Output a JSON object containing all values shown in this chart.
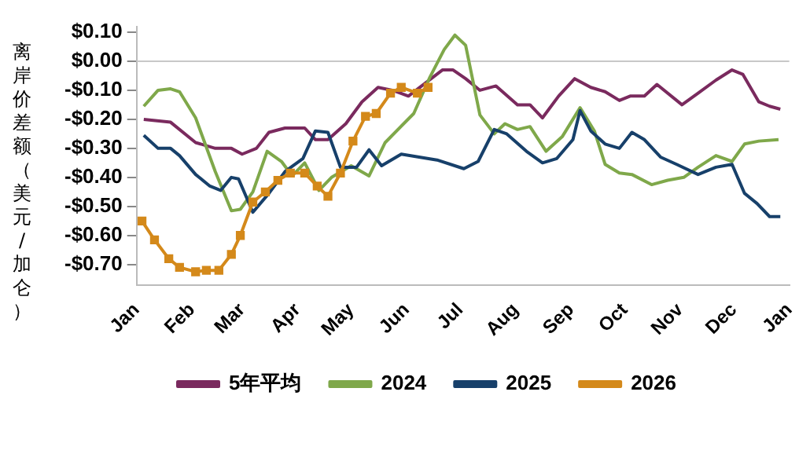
{
  "chart_data": {
    "type": "line",
    "ylabel": "离岸价差额（美元/加仑）",
    "xlim": [
      "2001-01-01",
      "2002-01-01"
    ],
    "ylim": [
      -0.77,
      0.12
    ],
    "xticks": [
      {
        "value": "--01-01",
        "label": "Jan"
      },
      {
        "value": "--02-01",
        "label": "Feb"
      },
      {
        "value": "--03-01",
        "label": "Mar"
      },
      {
        "value": "--04-01",
        "label": "Apr"
      },
      {
        "value": "--05-01",
        "label": "May"
      },
      {
        "value": "--06-01",
        "label": "Jun"
      },
      {
        "value": "--07-01",
        "label": "Jul"
      },
      {
        "value": "--08-01",
        "label": "Aug"
      },
      {
        "value": "--09-01",
        "label": "Sep"
      },
      {
        "value": "--10-01",
        "label": "Oct"
      },
      {
        "value": "--11-01",
        "label": "Nov"
      },
      {
        "value": "--12-01",
        "label": "Dec"
      },
      {
        "value": "2002-01-01",
        "label": "Jan"
      }
    ],
    "yticks": [
      {
        "value": 0.1,
        "label": "$0.10"
      },
      {
        "value": 0,
        "label": "$0.00"
      },
      {
        "value": -0.1,
        "label": "-$0.10"
      },
      {
        "value": -0.2,
        "label": "-$0.20"
      },
      {
        "value": -0.3,
        "label": "-$0.30"
      },
      {
        "value": -0.4,
        "label": "-$0.40"
      },
      {
        "value": -0.5,
        "label": "-$0.50"
      },
      {
        "value": -0.6,
        "label": "-$0.60"
      },
      {
        "value": -0.7,
        "label": "-$0.70"
      }
    ],
    "grid": false,
    "legend": "bottom",
    "marker": "none",
    "line_style": "solid",
    "ref_lines": [
      {
        "axis": "y",
        "value": 0,
        "color": "#c8c8c8"
      }
    ],
    "series": [
      {
        "name": "5年平均",
        "color": "#7a2a5e",
        "x": [
          "--01-05",
          "--01-20",
          "--02-03",
          "--02-14",
          "--02-23",
          "--03-01",
          "--03-09",
          "--03-16",
          "--03-25",
          "--04-05",
          "--04-11",
          "--04-18",
          "--04-28",
          "--05-07",
          "--05-16",
          "--05-24",
          "--06-02",
          "--06-21",
          "--06-27",
          "--07-04",
          "--07-12",
          "--07-21",
          "--08-02",
          "--08-09",
          "--08-16",
          "--08-25",
          "--09-03",
          "--09-12",
          "--09-20",
          "--09-28",
          "--10-04",
          "--10-12",
          "--10-19",
          "--11-02",
          "--11-11",
          "--11-21",
          "--11-30",
          "--12-06",
          "--12-15",
          "--12-21",
          "--12-27"
        ],
        "values": [
          -0.2,
          -0.21,
          -0.28,
          -0.3,
          -0.3,
          -0.32,
          -0.3,
          -0.245,
          -0.23,
          -0.23,
          -0.27,
          -0.27,
          -0.215,
          -0.14,
          -0.09,
          -0.1,
          -0.12,
          -0.03,
          -0.03,
          -0.06,
          -0.1,
          -0.085,
          -0.15,
          -0.15,
          -0.195,
          -0.12,
          -0.06,
          -0.09,
          -0.105,
          -0.135,
          -0.12,
          -0.12,
          -0.08,
          -0.15,
          -0.11,
          -0.065,
          -0.03,
          -0.045,
          -0.14,
          -0.155,
          -0.165
        ]
      },
      {
        "name": "2024",
        "color": "#7fa84a",
        "x": [
          "--01-05",
          "--01-13",
          "--01-20",
          "--01-25",
          "--02-03",
          "--02-14",
          "--02-23",
          "--02-28",
          "--03-07",
          "--03-15",
          "--03-23",
          "--03-29",
          "--04-05",
          "--04-13",
          "--04-20",
          "--05-01",
          "--05-11",
          "--05-20",
          "--06-05",
          "--06-14",
          "--06-22",
          "--06-28",
          "--07-04",
          "--07-12",
          "--07-20",
          "--07-26",
          "--08-02",
          "--08-09",
          "--08-18",
          "--08-27",
          "--09-06",
          "--09-14",
          "--09-20",
          "--09-28",
          "--10-05",
          "--10-16",
          "--10-25",
          "--11-03",
          "--11-11",
          "--11-21",
          "--11-30",
          "--12-07",
          "--12-15",
          "--12-26"
        ],
        "values": [
          -0.155,
          -0.1,
          -0.095,
          -0.105,
          -0.195,
          -0.38,
          -0.515,
          -0.51,
          -0.45,
          -0.31,
          -0.345,
          -0.395,
          -0.35,
          -0.445,
          -0.4,
          -0.36,
          -0.395,
          -0.28,
          -0.18,
          -0.055,
          0.04,
          0.09,
          0.055,
          -0.185,
          -0.25,
          -0.215,
          -0.235,
          -0.225,
          -0.31,
          -0.26,
          -0.16,
          -0.24,
          -0.355,
          -0.385,
          -0.39,
          -0.425,
          -0.41,
          -0.4,
          -0.365,
          -0.325,
          -0.345,
          -0.285,
          -0.275,
          -0.27
        ]
      },
      {
        "name": "2025",
        "color": "#17406a",
        "x": [
          "--01-05",
          "--01-13",
          "--01-20",
          "--01-25",
          "--02-03",
          "--02-11",
          "--02-17",
          "--02-23",
          "--02-27",
          "--03-07",
          "--03-16",
          "--03-25",
          "--04-04",
          "--04-11",
          "--04-18",
          "--04-25",
          "--05-04",
          "--05-11",
          "--05-18",
          "--05-29",
          "--06-18",
          "--07-03",
          "--07-11",
          "--07-20",
          "--07-27",
          "--08-07",
          "--08-16",
          "--08-24",
          "--09-02",
          "--09-06",
          "--09-12",
          "--09-20",
          "--09-28",
          "--10-05",
          "--10-12",
          "--10-21",
          "--10-30",
          "--11-11",
          "--11-21",
          "--11-30",
          "--12-07",
          "--12-14",
          "--12-21",
          "--12-27"
        ],
        "values": [
          -0.255,
          -0.3,
          -0.3,
          -0.325,
          -0.39,
          -0.43,
          -0.445,
          -0.4,
          -0.405,
          -0.52,
          -0.455,
          -0.38,
          -0.335,
          -0.24,
          -0.245,
          -0.365,
          -0.365,
          -0.305,
          -0.36,
          -0.32,
          -0.34,
          -0.37,
          -0.345,
          -0.235,
          -0.25,
          -0.31,
          -0.35,
          -0.335,
          -0.27,
          -0.17,
          -0.24,
          -0.285,
          -0.3,
          -0.245,
          -0.27,
          -0.33,
          -0.355,
          -0.39,
          -0.365,
          -0.355,
          -0.455,
          -0.49,
          -0.535,
          -0.535
        ]
      },
      {
        "name": "2026",
        "color": "#d4891a",
        "marker": "square",
        "x": [
          "--01-04",
          "--01-11",
          "--01-19",
          "--01-25",
          "--02-03",
          "--02-09",
          "--02-16",
          "--02-23",
          "--02-28",
          "--03-07",
          "--03-14",
          "--03-21",
          "--03-28",
          "--04-05",
          "--04-12",
          "--04-18",
          "--04-25",
          "--05-02",
          "--05-09",
          "--05-15",
          "--05-23",
          "--05-29",
          "--06-07",
          "--06-13"
        ],
        "values": [
          -0.55,
          -0.615,
          -0.68,
          -0.71,
          -0.725,
          -0.72,
          -0.72,
          -0.665,
          -0.6,
          -0.485,
          -0.45,
          -0.41,
          -0.385,
          -0.385,
          -0.43,
          -0.465,
          -0.385,
          -0.275,
          -0.19,
          -0.18,
          -0.11,
          -0.09,
          -0.11,
          -0.09
        ]
      }
    ]
  }
}
